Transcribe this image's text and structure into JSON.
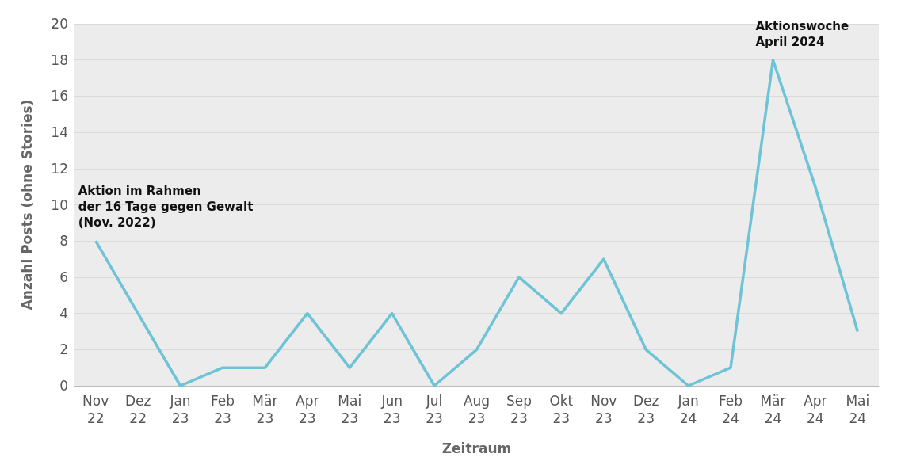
{
  "chart_data": {
    "type": "line",
    "xlabel": "Zeitraum",
    "ylabel": "Anzahl Posts (ohne Stories)",
    "categories": [
      "Nov 22",
      "Dez 22",
      "Jan 23",
      "Feb 23",
      "Mär 23",
      "Apr 23",
      "Mai 23",
      "Jun 23",
      "Jul 23",
      "Aug 23",
      "Sep 23",
      "Okt 23",
      "Nov 23",
      "Dez 23",
      "Jan 24",
      "Feb 24",
      "Mär 24",
      "Apr 24",
      "Mai 24"
    ],
    "series": [
      {
        "color": "#6ec3d6",
        "values": [
          8,
          4,
          0,
          1,
          1,
          4,
          1,
          4,
          0,
          2,
          6,
          4,
          7,
          2,
          0,
          1,
          18,
          11,
          3
        ]
      }
    ],
    "ylim": [
      0,
      20
    ],
    "yticks": [
      0,
      2,
      4,
      6,
      8,
      10,
      12,
      14,
      16,
      18,
      20
    ],
    "grid": "y",
    "marker": "none",
    "line_style": "solid",
    "annotations": [
      {
        "text": "Aktion im Rahmen\nder 16 Tage gegen Gewalt\n(Nov. 2022)",
        "x": "Nov 22",
        "y": 8
      },
      {
        "text": "Aktionswoche\nApril 2024",
        "x": "Mär 24",
        "y": 18
      }
    ]
  }
}
